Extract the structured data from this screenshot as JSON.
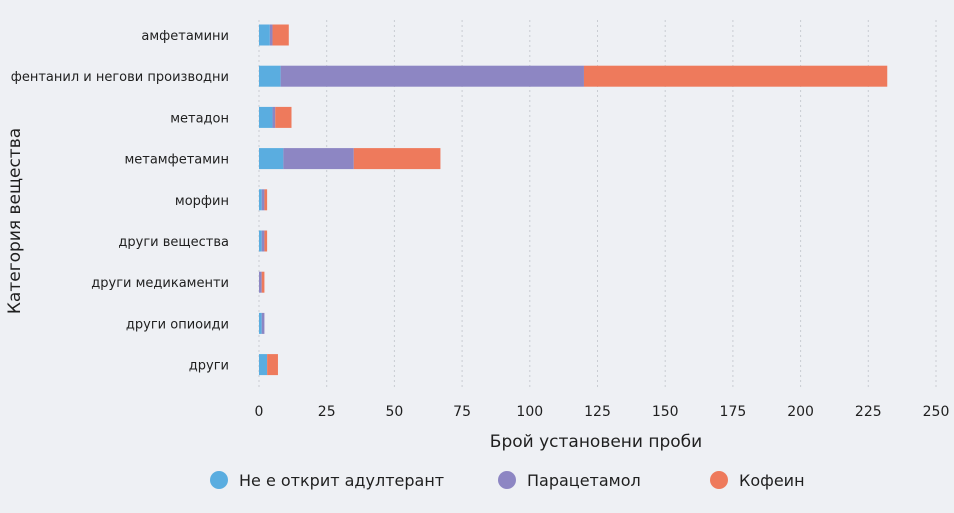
{
  "chart_data": {
    "type": "bar",
    "orientation": "horizontal",
    "stacked": true,
    "xlabel": "Брой установени проби",
    "ylabel": "Категория вещества",
    "xlim": [
      0,
      250
    ],
    "xticks": [
      0,
      25,
      50,
      75,
      100,
      125,
      150,
      175,
      200,
      225,
      250
    ],
    "grid": true,
    "legend_position": "bottom",
    "categories": [
      "амфетамини",
      "фентанил и негови производни",
      "метадон",
      "метамфетамин",
      "морфин",
      "други вещества",
      "други медикаменти",
      "други опиоиди",
      "други"
    ],
    "series": [
      {
        "name": "Не е открит адултерант",
        "color": "#5aade0",
        "values": [
          4,
          8,
          5,
          9,
          1,
          1,
          0,
          1,
          3
        ]
      },
      {
        "name": "Парацетамол",
        "color": "#8d86c3",
        "values": [
          1,
          112,
          1,
          26,
          1,
          1,
          1,
          1,
          0
        ]
      },
      {
        "name": "Кофеин",
        "color": "#ee7a5c",
        "values": [
          6,
          112,
          6,
          32,
          1,
          1,
          1,
          0,
          4
        ]
      }
    ]
  }
}
